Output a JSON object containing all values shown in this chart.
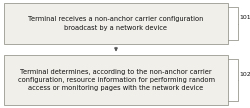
{
  "box1_text": "Terminal receives a non-anchor carrier configuration\nbroadcast by a network device",
  "box2_text": "Terminal determines, according to the non-anchor carrier\nconfiguration, resource information for performing random\naccess or monitoring pages with the network device",
  "label1": "101",
  "label2": "102",
  "box_facecolor": "#f0efea",
  "box_edgecolor": "#999990",
  "text_color": "#111111",
  "bg_color": "#ffffff",
  "font_size": 4.8,
  "label_font_size": 4.5
}
